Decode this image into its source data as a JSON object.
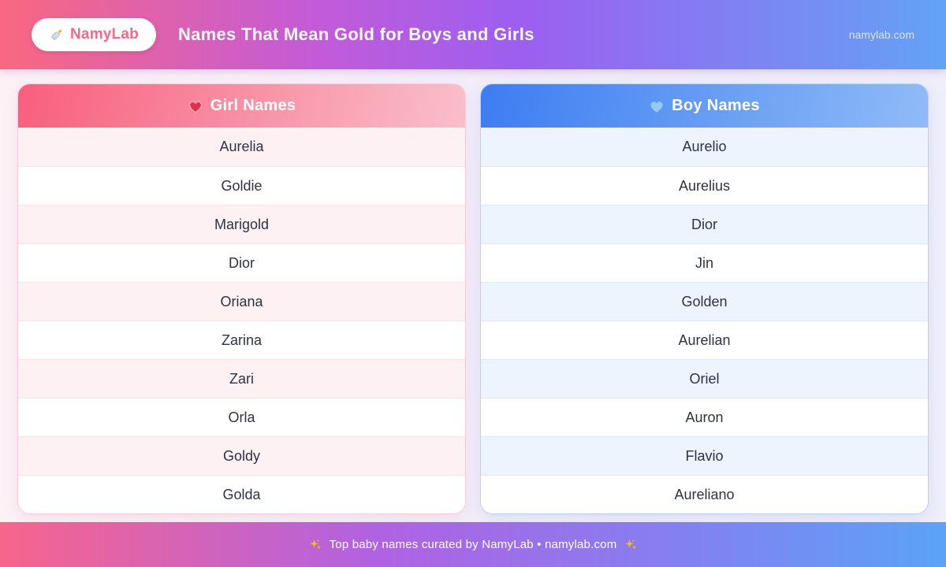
{
  "brand": {
    "name": "NamyLab",
    "logo_icon": "baby-bottle-icon"
  },
  "header": {
    "title": "Names That Mean Gold for Boys and Girls",
    "site_label": "namylab.com"
  },
  "girl_table": {
    "header": "Girl Names",
    "icon": "pink-heart-icon",
    "names": [
      "Aurelia",
      "Goldie",
      "Marigold",
      "Dior",
      "Oriana",
      "Zarina",
      "Zari",
      "Orla",
      "Goldy",
      "Golda"
    ]
  },
  "boy_table": {
    "header": "Boy Names",
    "icon": "blue-heart-icon",
    "names": [
      "Aurelio",
      "Aurelius",
      "Dior",
      "Jin",
      "Golden",
      "Aurelian",
      "Oriel",
      "Auron",
      "Flavio",
      "Aureliano"
    ]
  },
  "footer": {
    "text": "Top baby names curated by NamyLab • namylab.com",
    "sparkle_icon": "sparkles-icon"
  },
  "colors": {
    "banner_gradient_left": "#f96880",
    "banner_gradient_mid": "#9c5ff0",
    "banner_gradient_right": "#63a3f5",
    "girl_header_left": "#f85f7e",
    "girl_header_right": "#f9bfca",
    "girl_row_tint": "#fdf1f3",
    "boy_header_left": "#3c7df1",
    "boy_header_right": "#90bbf7",
    "boy_row_tint": "#edf4fd",
    "brand_text": "#f5688b",
    "name_text": "#2d3344",
    "sparkle_gold": "#f6b73c"
  }
}
